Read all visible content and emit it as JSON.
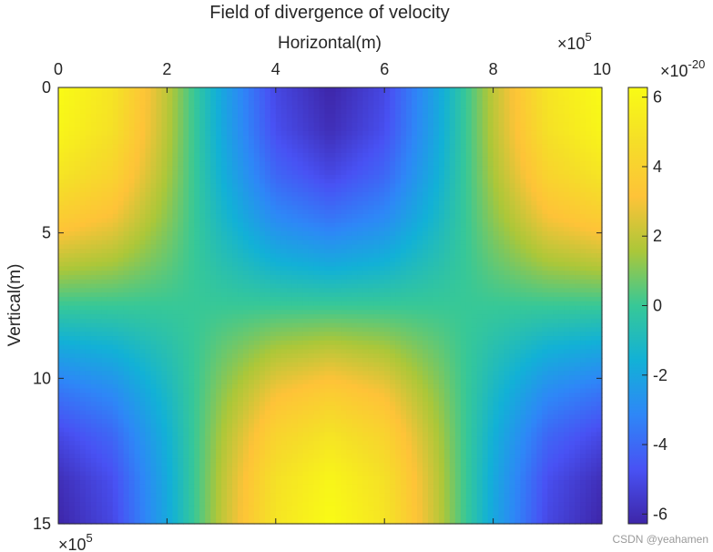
{
  "chart_data": {
    "type": "heatmap",
    "title": "Field of divergence of velocity",
    "xlabel": "Horizontal(m)",
    "ylabel": "Vertical(m)",
    "x_exponent_label": "×10",
    "x_exponent": "5",
    "y_exponent_label": "×10",
    "y_exponent": "5",
    "colorbar_exponent_label": "×10",
    "colorbar_exponent": "-20",
    "xlim": [
      0,
      10
    ],
    "ylim": [
      0,
      15
    ],
    "y_reversed": true,
    "x_axis_location": "top",
    "clim": [
      -6.28,
      6.28
    ],
    "colormap": "parula",
    "xticks": [
      0,
      2,
      4,
      6,
      8,
      10
    ],
    "yticks": [
      0,
      5,
      10,
      15
    ],
    "colorbar_ticks": [
      -6,
      -4,
      -2,
      0,
      2,
      4,
      6
    ],
    "x": [
      0,
      1,
      2,
      3,
      4,
      5,
      6,
      7,
      8,
      9,
      10
    ],
    "y": [
      0,
      1.5,
      3,
      4.5,
      6,
      7.5,
      9,
      10.5,
      12,
      13.5,
      15
    ],
    "z": [
      [
        6.28,
        5.08,
        1.94,
        -1.94,
        -5.08,
        -6.28,
        -5.08,
        -1.94,
        1.94,
        5.08,
        6.28
      ],
      [
        5.97,
        4.83,
        1.84,
        -1.84,
        -4.83,
        -5.97,
        -4.83,
        -1.84,
        1.84,
        4.83,
        5.97
      ],
      [
        5.08,
        4.11,
        1.57,
        -1.57,
        -4.11,
        -5.08,
        -4.11,
        -1.57,
        1.57,
        4.11,
        5.08
      ],
      [
        3.69,
        2.99,
        1.14,
        -1.14,
        -2.99,
        -3.69,
        -2.99,
        -1.14,
        1.14,
        2.99,
        3.69
      ],
      [
        1.94,
        1.57,
        0.6,
        -0.6,
        -1.57,
        -1.94,
        -1.57,
        -0.6,
        0.6,
        1.57,
        1.94
      ],
      [
        0,
        0,
        0,
        0,
        0,
        0,
        0,
        0,
        0,
        0,
        0
      ],
      [
        -1.94,
        -1.57,
        -0.6,
        0.6,
        1.57,
        1.94,
        1.57,
        0.6,
        -0.6,
        -1.57,
        -1.94
      ],
      [
        -3.69,
        -2.99,
        -1.14,
        1.14,
        2.99,
        3.69,
        2.99,
        1.14,
        -1.14,
        -2.99,
        -3.69
      ],
      [
        -5.08,
        -4.11,
        -1.57,
        1.57,
        4.11,
        5.08,
        4.11,
        1.57,
        -1.57,
        -4.11,
        -5.08
      ],
      [
        -5.97,
        -4.83,
        -1.84,
        1.84,
        4.83,
        5.97,
        4.83,
        1.84,
        -1.84,
        -4.83,
        -5.97
      ],
      [
        -6.28,
        -5.08,
        -1.94,
        1.94,
        5.08,
        6.28,
        5.08,
        1.94,
        -1.94,
        -5.08,
        -6.28
      ]
    ]
  },
  "watermark": "CSDN @yeahamen"
}
